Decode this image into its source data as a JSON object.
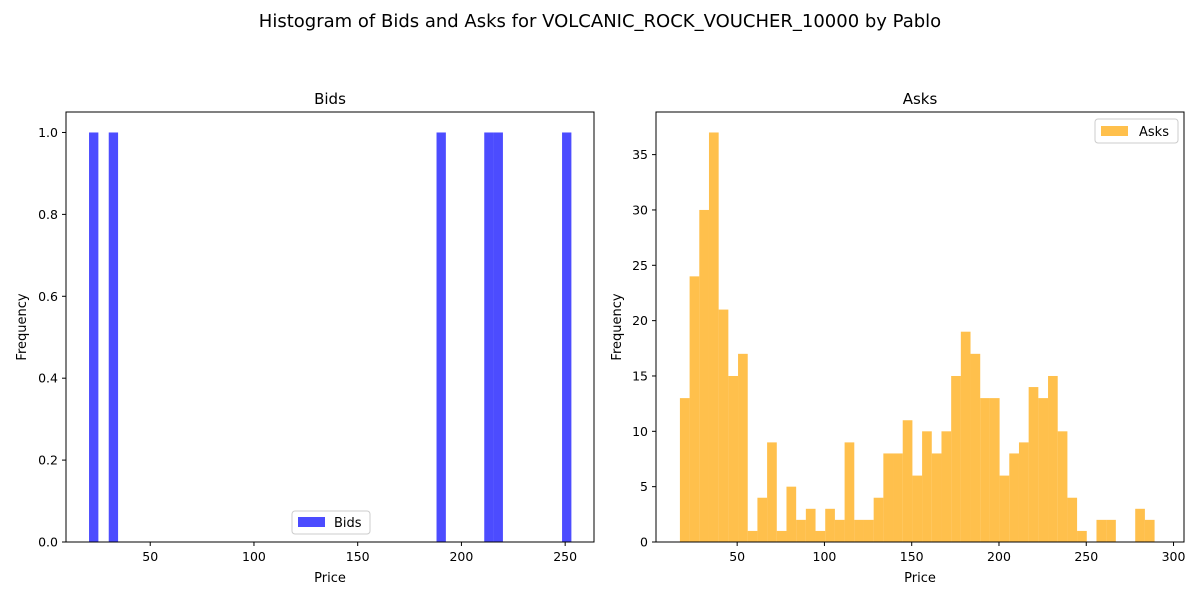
{
  "figure_title": "Histogram of Bids and Asks for VOLCANIC_ROCK_VOUCHER_10000 by Pablo",
  "chart_data": [
    {
      "type": "bar",
      "id": "bids",
      "title": "Bids",
      "xlabel": "Price",
      "ylabel": "Frequency",
      "xlim": [
        9.4,
        263.9
      ],
      "ylim": [
        0,
        1.05
      ],
      "xticks": [
        50,
        100,
        150,
        200,
        250
      ],
      "yticks": [
        0.0,
        0.2,
        0.4,
        0.6,
        0.8,
        1.0
      ],
      "ytick_labels": [
        "0.0",
        "0.2",
        "0.4",
        "0.6",
        "0.8",
        "1.0"
      ],
      "legend": {
        "label": "Bids",
        "position": "lower-center"
      },
      "color": "#0000ff",
      "opacity": 0.7,
      "series": [
        {
          "name": "Bids",
          "bins": [
            {
              "x0": 20.5,
              "x1": 25.0,
              "count": 1
            },
            {
              "x0": 30.0,
              "x1": 34.5,
              "count": 1
            },
            {
              "x0": 188.0,
              "x1": 192.5,
              "count": 1
            },
            {
              "x0": 211.0,
              "x1": 215.5,
              "count": 1
            },
            {
              "x0": 215.5,
              "x1": 220.0,
              "count": 1
            },
            {
              "x0": 248.5,
              "x1": 253.0,
              "count": 1
            }
          ]
        }
      ]
    },
    {
      "type": "bar",
      "id": "asks",
      "title": "Asks",
      "xlabel": "Price",
      "ylabel": "Frequency",
      "xlim": [
        3.5,
        306
      ],
      "ylim": [
        0,
        38.85
      ],
      "xticks": [
        50,
        100,
        150,
        200,
        250,
        300
      ],
      "yticks": [
        0,
        5,
        10,
        15,
        20,
        25,
        30,
        35
      ],
      "ytick_labels": [
        "0",
        "5",
        "10",
        "15",
        "20",
        "25",
        "30",
        "35"
      ],
      "legend": {
        "label": "Asks",
        "position": "top-right"
      },
      "color": "#ffa500",
      "opacity": 0.7,
      "series": [
        {
          "name": "Asks",
          "bin_start": 17.2,
          "bin_width": 5.55,
          "counts": [
            13,
            24,
            30,
            37,
            21,
            15,
            17,
            1,
            4,
            9,
            1,
            5,
            2,
            3,
            1,
            3,
            2,
            9,
            2,
            2,
            4,
            8,
            8,
            11,
            6,
            10,
            8,
            10,
            15,
            19,
            17,
            13,
            13,
            6,
            8,
            9,
            14,
            13,
            15,
            10,
            4,
            1,
            0,
            2,
            2,
            0,
            0,
            3,
            2
          ]
        }
      ]
    }
  ]
}
